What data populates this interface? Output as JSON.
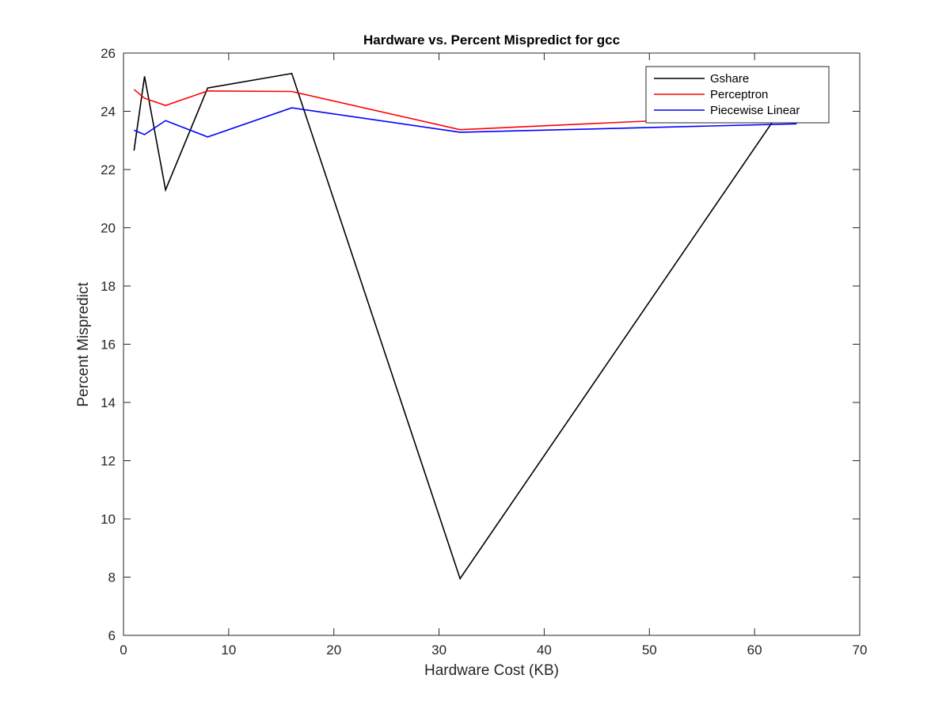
{
  "chart_data": {
    "type": "line",
    "title": "Hardware vs. Percent Mispredict for gcc",
    "xlabel": "Hardware Cost (KB)",
    "ylabel": "Percent Mispredict",
    "xlim": [
      0,
      70
    ],
    "ylim": [
      6,
      26
    ],
    "xticks": [
      0,
      10,
      20,
      30,
      40,
      50,
      60,
      70
    ],
    "yticks": [
      6,
      8,
      10,
      12,
      14,
      16,
      18,
      20,
      22,
      24,
      26
    ],
    "grid": false,
    "legend_position": "top-right",
    "x": [
      1,
      2,
      4,
      8,
      16,
      32,
      64
    ],
    "series": [
      {
        "name": "Gshare",
        "color": "#000000",
        "values": [
          22.65,
          25.2,
          21.3,
          24.8,
          25.3,
          7.95,
          24.85
        ]
      },
      {
        "name": "Perceptron",
        "color": "#ff0000",
        "values": [
          24.75,
          24.45,
          24.2,
          24.7,
          24.68,
          23.37,
          23.9
        ]
      },
      {
        "name": "Piecewise Linear",
        "color": "#0000ff",
        "values": [
          23.35,
          23.2,
          23.68,
          23.12,
          24.12,
          23.28,
          23.57
        ]
      }
    ]
  }
}
